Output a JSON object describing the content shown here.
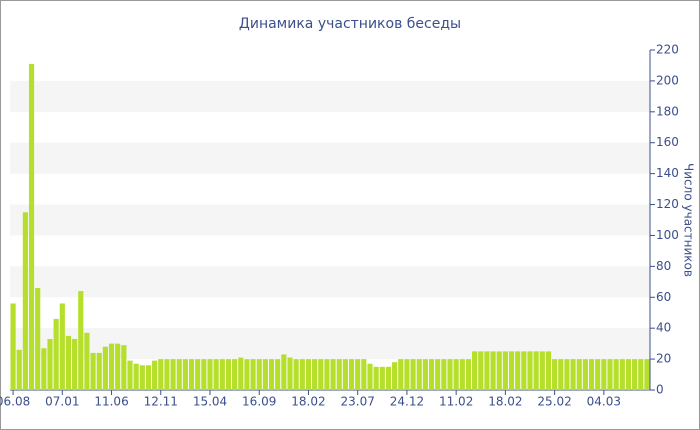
{
  "chart_data": {
    "type": "bar",
    "title": "Динамика участников беседы",
    "y_label": "Число участников",
    "categories": [
      "06.08",
      null,
      null,
      null,
      null,
      null,
      null,
      null,
      "07.01",
      null,
      null,
      null,
      null,
      null,
      null,
      null,
      "11.06",
      null,
      null,
      null,
      null,
      null,
      null,
      null,
      "12.11",
      null,
      null,
      null,
      null,
      null,
      null,
      null,
      "15.04",
      null,
      null,
      null,
      null,
      null,
      null,
      null,
      "16.09",
      null,
      null,
      null,
      null,
      null,
      null,
      null,
      "18.02",
      null,
      null,
      null,
      null,
      null,
      null,
      null,
      "23.07",
      null,
      null,
      null,
      null,
      null,
      null,
      null,
      "24.12",
      null,
      null,
      null,
      null,
      null,
      null,
      null,
      "11.02",
      null,
      null,
      null,
      null,
      null,
      null,
      null,
      "18.02",
      null,
      null,
      null,
      null,
      null,
      null,
      null,
      "25.02",
      null,
      null,
      null,
      null,
      null,
      null,
      null,
      "04.03",
      null,
      null,
      null,
      null,
      null,
      null,
      null
    ],
    "values": [
      56,
      26,
      115,
      211,
      66,
      27,
      33,
      46,
      56,
      35,
      33,
      64,
      37,
      24,
      24,
      28,
      30,
      30,
      29,
      19,
      17,
      16,
      16,
      19,
      20,
      20,
      20,
      20,
      20,
      20,
      20,
      20,
      20,
      20,
      20,
      20,
      20,
      21,
      20,
      20,
      20,
      20,
      20,
      20,
      23,
      21,
      20,
      20,
      20,
      20,
      20,
      20,
      20,
      20,
      20,
      20,
      20,
      20,
      17,
      15,
      15,
      15,
      18,
      20,
      20,
      20,
      20,
      20,
      20,
      20,
      20,
      20,
      20,
      20,
      20,
      25,
      25,
      25,
      25,
      25,
      25,
      25,
      25,
      25,
      25,
      25,
      25,
      25,
      20,
      20,
      20,
      20,
      20,
      20,
      20,
      20,
      20,
      20,
      20,
      20,
      20,
      20,
      20,
      20
    ],
    "color": "#b5df2b",
    "ylim": [
      0,
      220
    ],
    "yticks": [
      0,
      20,
      40,
      60,
      80,
      100,
      120,
      140,
      160,
      180,
      200,
      220
    ],
    "grid": "bands"
  }
}
